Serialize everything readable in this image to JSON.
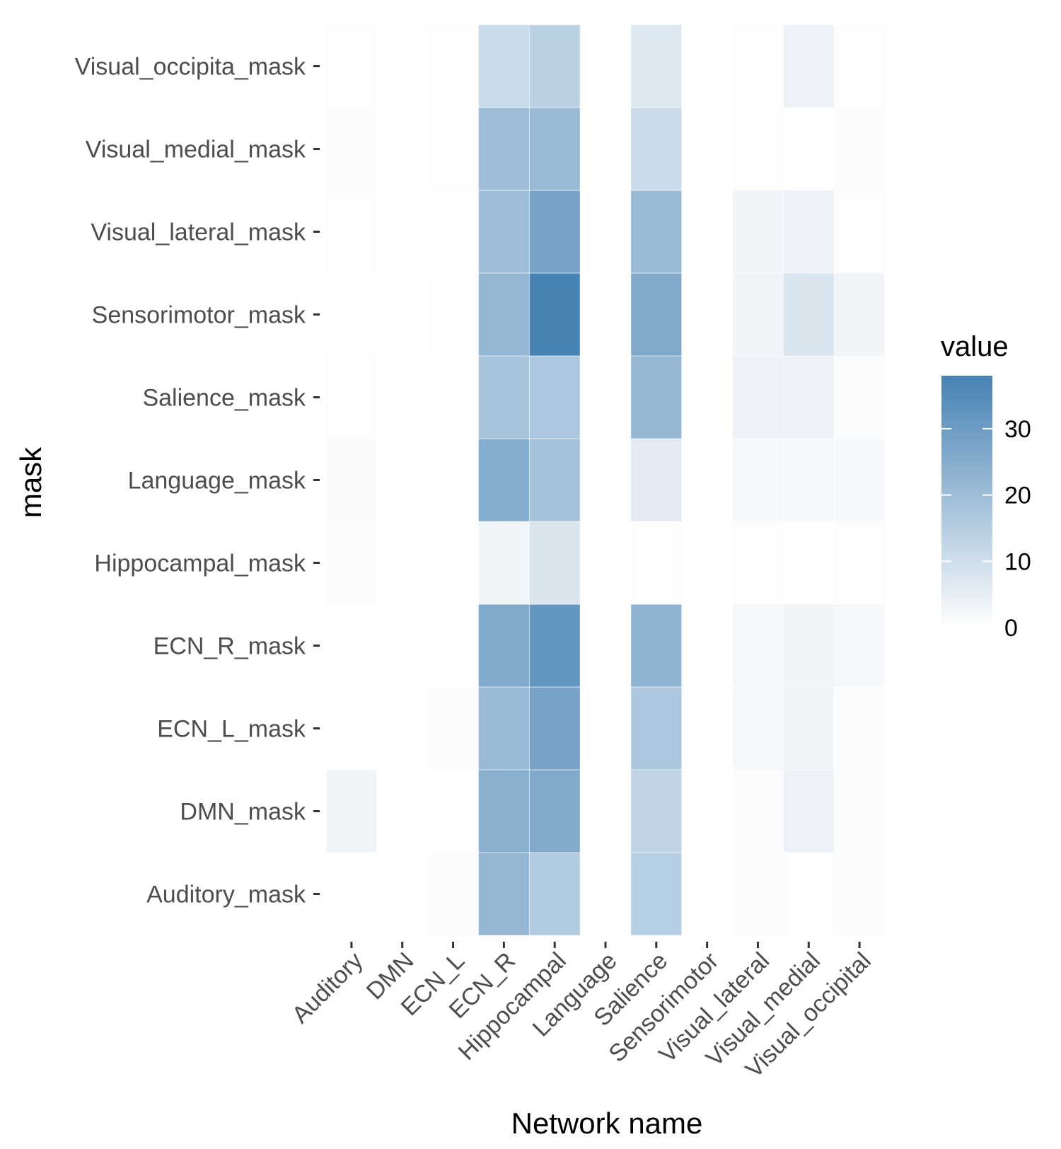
{
  "chart_data": {
    "type": "heatmap",
    "title": "",
    "xlabel": "Network name",
    "ylabel": "mask",
    "x_categories": [
      "Auditory",
      "DMN",
      "ECN_L",
      "ECN_R",
      "Hippocampal",
      "Language",
      "Salience",
      "Sensorimotor",
      "Visual_lateral",
      "Visual_medial",
      "Visual_occipital"
    ],
    "y_categories": [
      "Auditory_mask",
      "DMN_mask",
      "ECN_L_mask",
      "ECN_R_mask",
      "Hippocampal_mask",
      "Language_mask",
      "Salience_mask",
      "Sensorimotor_mask",
      "Visual_lateral_mask",
      "Visual_medial_mask",
      "Visual_occipita_mask"
    ],
    "values": [
      [
        null,
        null,
        1,
        22,
        16,
        null,
        15,
        null,
        1,
        0.5,
        1
      ],
      [
        3,
        null,
        null,
        24,
        26,
        null,
        13,
        null,
        1,
        4,
        1
      ],
      [
        null,
        null,
        1,
        21,
        28,
        null,
        17,
        null,
        2,
        3,
        1
      ],
      [
        null,
        null,
        null,
        26,
        32,
        null,
        23,
        null,
        2,
        3,
        2
      ],
      [
        1,
        null,
        null,
        3,
        8,
        null,
        0.5,
        null,
        0.5,
        null,
        0.5
      ],
      [
        1.5,
        null,
        null,
        25,
        19,
        null,
        6,
        null,
        2,
        2,
        2
      ],
      [
        0.5,
        null,
        null,
        18,
        17,
        null,
        22,
        null,
        4,
        4,
        1
      ],
      [
        null,
        null,
        0.5,
        22,
        38,
        null,
        26,
        null,
        3,
        8,
        3
      ],
      [
        0.5,
        null,
        null,
        20,
        28,
        null,
        21,
        null,
        3,
        4,
        0.5
      ],
      [
        1,
        null,
        0.5,
        20,
        21,
        null,
        11,
        null,
        0.5,
        null,
        1
      ],
      [
        0.5,
        null,
        0.5,
        11,
        14,
        null,
        7,
        null,
        0.5,
        4,
        0.5
      ]
    ],
    "color_scale": {
      "low": "#ffffff",
      "high": "#4682b4",
      "min": 0,
      "max": 38
    },
    "legend": {
      "title": "value",
      "ticks": [
        0,
        10,
        20,
        30
      ],
      "placement": "right"
    },
    "grid": false
  }
}
